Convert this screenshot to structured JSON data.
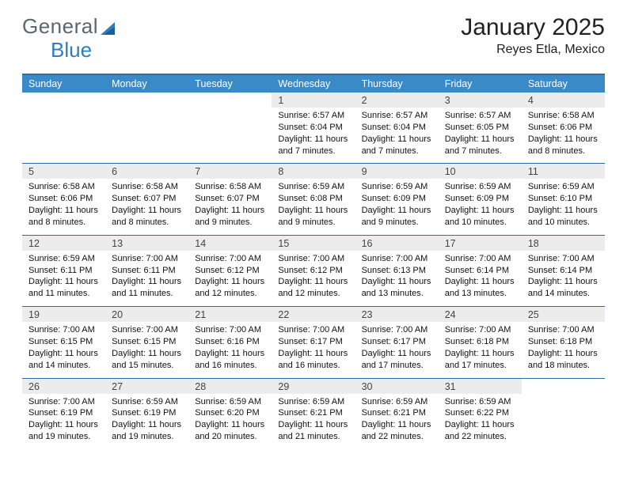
{
  "logo": {
    "text_a": "General",
    "text_b": "Blue"
  },
  "title": "January 2025",
  "location": "Reyes Etla, Mexico",
  "colors": {
    "header_bg": "#3a8ac7",
    "header_border": "#2b6ea8",
    "daynum_bg": "#ececec",
    "logo_gray": "#5a6770",
    "logo_blue": "#2b7ec2"
  },
  "day_headers": [
    "Sunday",
    "Monday",
    "Tuesday",
    "Wednesday",
    "Thursday",
    "Friday",
    "Saturday"
  ],
  "weeks": [
    {
      "days": [
        {
          "n": "",
          "sunrise": "",
          "sunset": "",
          "daylight": ""
        },
        {
          "n": "",
          "sunrise": "",
          "sunset": "",
          "daylight": ""
        },
        {
          "n": "",
          "sunrise": "",
          "sunset": "",
          "daylight": ""
        },
        {
          "n": "1",
          "sunrise": "Sunrise: 6:57 AM",
          "sunset": "Sunset: 6:04 PM",
          "daylight": "Daylight: 11 hours and 7 minutes."
        },
        {
          "n": "2",
          "sunrise": "Sunrise: 6:57 AM",
          "sunset": "Sunset: 6:04 PM",
          "daylight": "Daylight: 11 hours and 7 minutes."
        },
        {
          "n": "3",
          "sunrise": "Sunrise: 6:57 AM",
          "sunset": "Sunset: 6:05 PM",
          "daylight": "Daylight: 11 hours and 7 minutes."
        },
        {
          "n": "4",
          "sunrise": "Sunrise: 6:58 AM",
          "sunset": "Sunset: 6:06 PM",
          "daylight": "Daylight: 11 hours and 8 minutes."
        }
      ]
    },
    {
      "days": [
        {
          "n": "5",
          "sunrise": "Sunrise: 6:58 AM",
          "sunset": "Sunset: 6:06 PM",
          "daylight": "Daylight: 11 hours and 8 minutes."
        },
        {
          "n": "6",
          "sunrise": "Sunrise: 6:58 AM",
          "sunset": "Sunset: 6:07 PM",
          "daylight": "Daylight: 11 hours and 8 minutes."
        },
        {
          "n": "7",
          "sunrise": "Sunrise: 6:58 AM",
          "sunset": "Sunset: 6:07 PM",
          "daylight": "Daylight: 11 hours and 9 minutes."
        },
        {
          "n": "8",
          "sunrise": "Sunrise: 6:59 AM",
          "sunset": "Sunset: 6:08 PM",
          "daylight": "Daylight: 11 hours and 9 minutes."
        },
        {
          "n": "9",
          "sunrise": "Sunrise: 6:59 AM",
          "sunset": "Sunset: 6:09 PM",
          "daylight": "Daylight: 11 hours and 9 minutes."
        },
        {
          "n": "10",
          "sunrise": "Sunrise: 6:59 AM",
          "sunset": "Sunset: 6:09 PM",
          "daylight": "Daylight: 11 hours and 10 minutes."
        },
        {
          "n": "11",
          "sunrise": "Sunrise: 6:59 AM",
          "sunset": "Sunset: 6:10 PM",
          "daylight": "Daylight: 11 hours and 10 minutes."
        }
      ]
    },
    {
      "days": [
        {
          "n": "12",
          "sunrise": "Sunrise: 6:59 AM",
          "sunset": "Sunset: 6:11 PM",
          "daylight": "Daylight: 11 hours and 11 minutes."
        },
        {
          "n": "13",
          "sunrise": "Sunrise: 7:00 AM",
          "sunset": "Sunset: 6:11 PM",
          "daylight": "Daylight: 11 hours and 11 minutes."
        },
        {
          "n": "14",
          "sunrise": "Sunrise: 7:00 AM",
          "sunset": "Sunset: 6:12 PM",
          "daylight": "Daylight: 11 hours and 12 minutes."
        },
        {
          "n": "15",
          "sunrise": "Sunrise: 7:00 AM",
          "sunset": "Sunset: 6:12 PM",
          "daylight": "Daylight: 11 hours and 12 minutes."
        },
        {
          "n": "16",
          "sunrise": "Sunrise: 7:00 AM",
          "sunset": "Sunset: 6:13 PM",
          "daylight": "Daylight: 11 hours and 13 minutes."
        },
        {
          "n": "17",
          "sunrise": "Sunrise: 7:00 AM",
          "sunset": "Sunset: 6:14 PM",
          "daylight": "Daylight: 11 hours and 13 minutes."
        },
        {
          "n": "18",
          "sunrise": "Sunrise: 7:00 AM",
          "sunset": "Sunset: 6:14 PM",
          "daylight": "Daylight: 11 hours and 14 minutes."
        }
      ]
    },
    {
      "days": [
        {
          "n": "19",
          "sunrise": "Sunrise: 7:00 AM",
          "sunset": "Sunset: 6:15 PM",
          "daylight": "Daylight: 11 hours and 14 minutes."
        },
        {
          "n": "20",
          "sunrise": "Sunrise: 7:00 AM",
          "sunset": "Sunset: 6:15 PM",
          "daylight": "Daylight: 11 hours and 15 minutes."
        },
        {
          "n": "21",
          "sunrise": "Sunrise: 7:00 AM",
          "sunset": "Sunset: 6:16 PM",
          "daylight": "Daylight: 11 hours and 16 minutes."
        },
        {
          "n": "22",
          "sunrise": "Sunrise: 7:00 AM",
          "sunset": "Sunset: 6:17 PM",
          "daylight": "Daylight: 11 hours and 16 minutes."
        },
        {
          "n": "23",
          "sunrise": "Sunrise: 7:00 AM",
          "sunset": "Sunset: 6:17 PM",
          "daylight": "Daylight: 11 hours and 17 minutes."
        },
        {
          "n": "24",
          "sunrise": "Sunrise: 7:00 AM",
          "sunset": "Sunset: 6:18 PM",
          "daylight": "Daylight: 11 hours and 17 minutes."
        },
        {
          "n": "25",
          "sunrise": "Sunrise: 7:00 AM",
          "sunset": "Sunset: 6:18 PM",
          "daylight": "Daylight: 11 hours and 18 minutes."
        }
      ]
    },
    {
      "days": [
        {
          "n": "26",
          "sunrise": "Sunrise: 7:00 AM",
          "sunset": "Sunset: 6:19 PM",
          "daylight": "Daylight: 11 hours and 19 minutes."
        },
        {
          "n": "27",
          "sunrise": "Sunrise: 6:59 AM",
          "sunset": "Sunset: 6:19 PM",
          "daylight": "Daylight: 11 hours and 19 minutes."
        },
        {
          "n": "28",
          "sunrise": "Sunrise: 6:59 AM",
          "sunset": "Sunset: 6:20 PM",
          "daylight": "Daylight: 11 hours and 20 minutes."
        },
        {
          "n": "29",
          "sunrise": "Sunrise: 6:59 AM",
          "sunset": "Sunset: 6:21 PM",
          "daylight": "Daylight: 11 hours and 21 minutes."
        },
        {
          "n": "30",
          "sunrise": "Sunrise: 6:59 AM",
          "sunset": "Sunset: 6:21 PM",
          "daylight": "Daylight: 11 hours and 22 minutes."
        },
        {
          "n": "31",
          "sunrise": "Sunrise: 6:59 AM",
          "sunset": "Sunset: 6:22 PM",
          "daylight": "Daylight: 11 hours and 22 minutes."
        },
        {
          "n": "",
          "sunrise": "",
          "sunset": "",
          "daylight": ""
        }
      ]
    }
  ]
}
